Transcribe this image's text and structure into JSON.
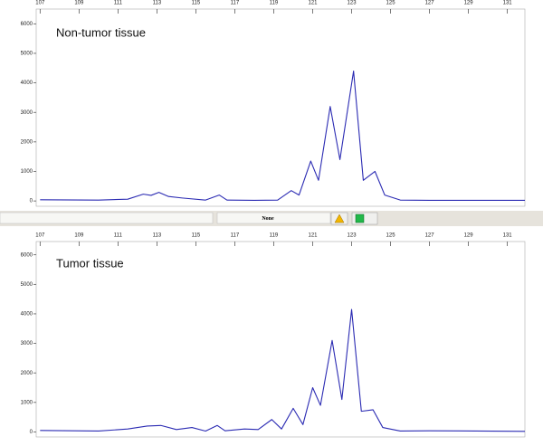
{
  "chart_data": [
    {
      "type": "line",
      "annotation": "Non-tumor tissue",
      "color": "#2b2bb3",
      "x": [
        107,
        110,
        111.5,
        112.3,
        112.7,
        113.1,
        113.6,
        114.3,
        115.5,
        116.2,
        116.6,
        118,
        119.2,
        119.9,
        120.3,
        120.9,
        121.3,
        121.9,
        122.4,
        123.1,
        123.6,
        124.2,
        124.7,
        125.5,
        127,
        131.9
      ],
      "values": [
        40,
        30,
        60,
        230,
        190,
        290,
        150,
        100,
        30,
        200,
        30,
        20,
        30,
        350,
        200,
        1350,
        700,
        3200,
        1400,
        4400,
        700,
        1000,
        200,
        30,
        20,
        20
      ],
      "xlim": [
        106.8,
        131.9
      ],
      "xticks": [
        107,
        109,
        111,
        113,
        115,
        117,
        119,
        121,
        123,
        125,
        127,
        129,
        131
      ],
      "ylim": [
        -180,
        6500
      ],
      "yticks": [
        0,
        1000,
        2000,
        3000,
        4000,
        5000,
        6000
      ]
    },
    {
      "type": "line",
      "annotation": "Tumor tissue",
      "color": "#2b2bb3",
      "x": [
        107,
        110,
        111.5,
        112.5,
        113.2,
        114,
        114.8,
        115.5,
        116.1,
        116.5,
        117.5,
        118.2,
        118.9,
        119.4,
        120,
        120.5,
        121,
        121.4,
        122,
        122.5,
        123,
        123.5,
        124.1,
        124.6,
        125.5,
        127,
        131.9
      ],
      "values": [
        50,
        30,
        100,
        200,
        220,
        80,
        150,
        30,
        220,
        40,
        100,
        80,
        420,
        100,
        800,
        250,
        1500,
        900,
        3100,
        1100,
        4150,
        700,
        750,
        150,
        30,
        40,
        20
      ],
      "xlim": [
        106.8,
        131.9
      ],
      "xticks": [
        107,
        109,
        111,
        113,
        115,
        117,
        119,
        121,
        123,
        125,
        127,
        129,
        131
      ],
      "ylim": [
        -170,
        6450
      ],
      "yticks": [
        0,
        1000,
        2000,
        3000,
        4000,
        5000,
        6000
      ]
    }
  ],
  "status_bar": {
    "label": "None"
  }
}
